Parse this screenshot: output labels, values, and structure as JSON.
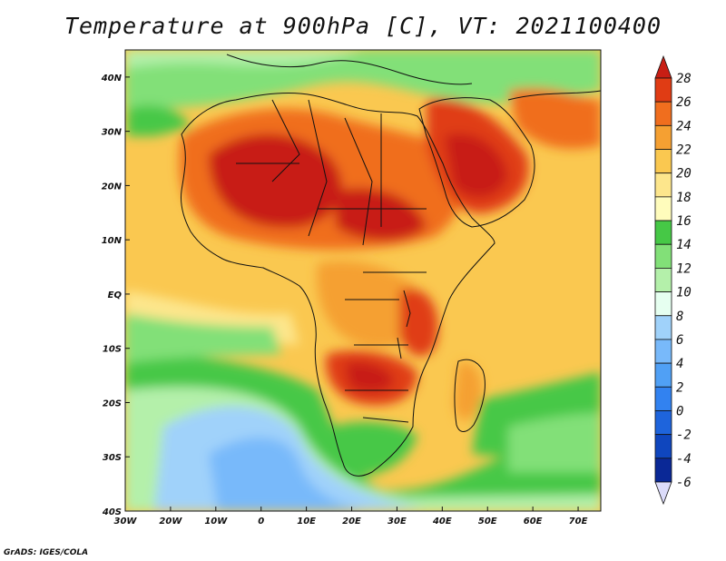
{
  "title": "Temperature at 900hPa [C], VT: 2021100400",
  "credit": "GrADS: IGES/COLA",
  "map": {
    "lon_range": [
      -30,
      75
    ],
    "lat_range": [
      -40,
      45
    ],
    "lon_ticks": [
      {
        "value": -30,
        "label": "30W"
      },
      {
        "value": -20,
        "label": "20W"
      },
      {
        "value": -10,
        "label": "10W"
      },
      {
        "value": 0,
        "label": "0"
      },
      {
        "value": 10,
        "label": "10E"
      },
      {
        "value": 20,
        "label": "20E"
      },
      {
        "value": 30,
        "label": "30E"
      },
      {
        "value": 40,
        "label": "40E"
      },
      {
        "value": 50,
        "label": "50E"
      },
      {
        "value": 60,
        "label": "60E"
      },
      {
        "value": 70,
        "label": "70E"
      }
    ],
    "lat_ticks": [
      {
        "value": 40,
        "label": "40N"
      },
      {
        "value": 30,
        "label": "30N"
      },
      {
        "value": 20,
        "label": "20N"
      },
      {
        "value": 10,
        "label": "10N"
      },
      {
        "value": 0,
        "label": "EQ"
      },
      {
        "value": -10,
        "label": "10S"
      },
      {
        "value": -20,
        "label": "20S"
      },
      {
        "value": -30,
        "label": "30S"
      },
      {
        "value": -40,
        "label": "40S"
      }
    ]
  },
  "colorbar": {
    "levels": [
      28,
      26,
      24,
      22,
      20,
      18,
      16,
      14,
      12,
      10,
      8,
      6,
      4,
      2,
      0,
      -2,
      -4,
      -6
    ],
    "labels": [
      "28",
      "26",
      "24",
      "22",
      "20",
      "18",
      "16",
      "14",
      "12",
      "10",
      "8",
      "6",
      "4",
      "2",
      "0",
      "-2",
      "-4",
      "-6"
    ],
    "colors": [
      "#c81e14",
      "#e03c14",
      "#f06e1e",
      "#f5a032",
      "#fac850",
      "#fde68c",
      "#fffcbc",
      "#46c846",
      "#82e078",
      "#b4f0aa",
      "#e6fff0",
      "#a0d2fa",
      "#78b9fa",
      "#50a0f5",
      "#3282f0",
      "#1e64dc",
      "#0f46be",
      "#0a2896",
      "#1e1e6e"
    ],
    "top_color": "#c81e14",
    "bottom_color": "#dcdcfa"
  }
}
